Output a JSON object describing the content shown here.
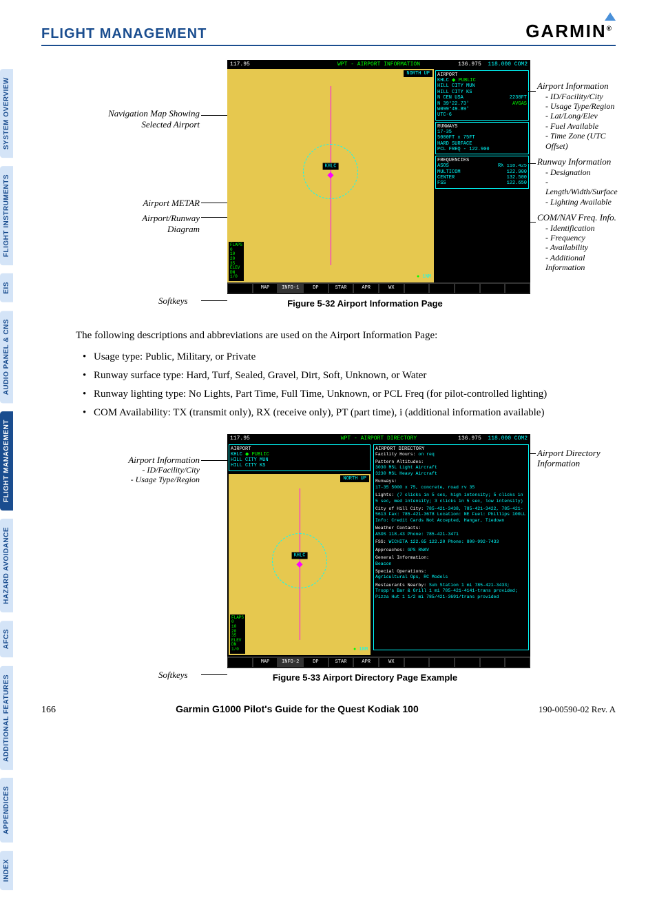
{
  "header": {
    "section": "FLIGHT MANAGEMENT",
    "brand": "GARMIN"
  },
  "tabs": [
    "SYSTEM OVERVIEW",
    "FLIGHT INSTRUMENTS",
    "EIS",
    "AUDIO PANEL & CNS",
    "FLIGHT MANAGEMENT",
    "HAZARD AVOIDANCE",
    "AFCS",
    "ADDITIONAL FEATURES",
    "APPENDICES",
    "INDEX"
  ],
  "fig1": {
    "caption": "Figure 5-32  Airport Information Page",
    "top": {
      "f1": "117.95",
      "title": "WPT - AIRPORT INFORMATION",
      "f2": "136.975",
      "f3": "118.000 COM2"
    },
    "northup": "NORTH UP",
    "airport_box": {
      "hdr": "AIRPORT",
      "id": "KHLC",
      "type": "PUBLIC",
      "name": "HILL CITY MUN",
      "city": "HILL CITY KS",
      "region": "N CEN USA",
      "elev": "2238FT",
      "lat": "N 39°22.73'",
      "lon": "W099°49.89'",
      "fuel": "AVGAS",
      "utc": "UTC-6"
    },
    "runways_box": {
      "hdr": "RUNWAYS",
      "desig": "17-35",
      "dims": "5000FT x 75FT",
      "surf": "HARD SURFACE",
      "pcl": "PCL FREQ - 122.900"
    },
    "freq_box": {
      "hdr": "FREQUENCIES",
      "rows": [
        [
          "ASOS",
          "RX 118.425"
        ],
        [
          "MULTICOM",
          "122.900"
        ],
        [
          "CENTER",
          "132.500"
        ],
        [
          "FSS",
          "122.650"
        ]
      ]
    },
    "flaps": "FLAPS\n0\n10\n20\n35\nELEV\nDN\n1/0",
    "scale": "1NM",
    "softkeys": [
      "",
      "MAP",
      "INFO-1",
      "DP",
      "STAR",
      "APR",
      "WX",
      "",
      "",
      "",
      "",
      ""
    ],
    "callouts_left": [
      "Navigation Map Showing Selected Airport",
      "Airport METAR",
      "Airport/Runway Diagram",
      "Softkeys"
    ],
    "callouts_right": [
      {
        "t": "Airport Information",
        "subs": [
          "- ID/Facility/City",
          "- Usage Type/Region",
          "- Lat/Long/Elev",
          "- Fuel Available",
          "- Time Zone (UTC Offset)"
        ]
      },
      {
        "t": "Runway Information",
        "subs": [
          "- Designation",
          "- Length/Width/Surface",
          "- Lighting Available"
        ]
      },
      {
        "t": "COM/NAV Freq. Info.",
        "subs": [
          "- Identification",
          "- Frequency",
          "- Availability",
          "- Additional Information"
        ]
      }
    ]
  },
  "paragraph": "The following descriptions and abbreviations are used on the Airport Information Page:",
  "bullets": [
    "Usage type: Public, Military, or Private",
    "Runway surface type: Hard, Turf, Sealed, Gravel, Dirt, Soft, Unknown, or Water",
    "Runway lighting type: No Lights, Part Time, Full Time, Unknown, or PCL Freq (for pilot-controlled lighting)",
    "COM Availability: TX (transmit only), RX (receive only), PT (part time), i (additional information available)"
  ],
  "fig2": {
    "caption": "Figure 5-33  Airport Directory Page Example",
    "top": {
      "f1": "117.95",
      "title": "WPT - AIRPORT DIRECTORY",
      "f2": "136.975",
      "f3": "118.000 COM2"
    },
    "airport_box": {
      "hdr": "AIRPORT",
      "id": "KHLC",
      "type": "PUBLIC",
      "name": "HILL CITY MUN",
      "city": "HILL CITY KS"
    },
    "northup": "NORTH UP",
    "dir_hdr": "AIRPORT DIRECTORY",
    "dir_lines": [
      "Facility Hours: on req",
      "Pattern Altitudes:\n3030 MSL Light Aircraft\n3230 MSL Heavy Aircraft",
      "Runways:\n17-35 5000 x 75, concrete, road rv 35",
      "Lights: (7 clicks in 5 sec, high intensity; 5 clicks in 5 sec, med intensity; 3 clicks in 5 sec, low intensity)",
      "City of Hill City: 785-421-3438, 785-421-3422, 785-421-5613  Fax: 785-421-3678  Location: NE  Fuel: Phillips 100LL  Info: Credit Cards Not Accepted, Hangar, Tiedown",
      "Weather Contacts:\nASOS 118.43  Phone: 785-421-3471",
      "FSS: WICHITA 122.65 122.20  Phone: 800-992-7433",
      "Approaches: GPS RNAV",
      "General Information:\nBeacon",
      "Special Operations:\nAgricultural Ops, RC Models",
      "Restaurants Nearby: Sub Station 1 mi 785-421-3433; Tropp's Bar & Grill 1 mi 785-421-4141-trans provided; Pizza Hut 1 1/2 mi 785/421-3691/trans provided"
    ],
    "softkeys": [
      "",
      "MAP",
      "INFO-2",
      "DP",
      "STAR",
      "APR",
      "WX",
      "",
      "",
      "",
      "",
      ""
    ],
    "callouts_left": [
      {
        "t": "Airport Information",
        "subs": [
          "- ID/Facility/City",
          "- Usage Type/Region"
        ]
      },
      "Softkeys"
    ],
    "callouts_right": [
      "Airport Directory Information"
    ]
  },
  "footer": {
    "page": "166",
    "center": "Garmin G1000 Pilot's Guide for the Quest Kodiak 100",
    "right": "190-00590-02  Rev. A"
  }
}
